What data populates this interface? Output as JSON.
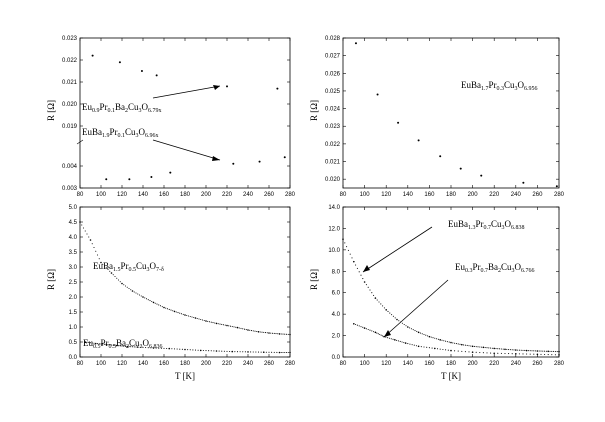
{
  "chart_data": [
    {
      "type": "scatter",
      "xlabel": "",
      "ylabel": "R [Ω]",
      "xlim": [
        80,
        280
      ],
      "ylim": [
        0.003,
        0.023
      ],
      "xticks": [
        "80",
        "100",
        "120",
        "140",
        "160",
        "180",
        "200",
        "220",
        "240",
        "260",
        "280"
      ],
      "yticks": [
        "0.003",
        "0.004",
        "0.019",
        "0.020",
        "0.021",
        "0.022",
        "0.023"
      ],
      "broken_axis": true,
      "series": [
        {
          "name": "Eu0.9Pr0.1Ba2Cu3O6.79x",
          "x": [
            92,
            118,
            139,
            153,
            220,
            268
          ],
          "y": [
            0.0222,
            0.0219,
            0.0215,
            0.0213,
            0.0208,
            0.0207
          ]
        },
        {
          "name": "EuBa1.9Pr0.1Cu3O6.96x",
          "x": [
            105,
            127,
            148,
            166,
            226,
            251,
            275
          ],
          "y": [
            0.0034,
            0.0034,
            0.0035,
            0.0037,
            0.0041,
            0.0042,
            0.0044
          ]
        }
      ],
      "annotations": [
        {
          "lines": [
            "Eu",
            "0.9",
            "Pr",
            "0.1",
            "Ba",
            "2",
            "Cu",
            "3",
            "O",
            "6.79x"
          ],
          "target": [
            220,
            0.0208
          ]
        },
        {
          "lines": [
            "EuBa",
            "1.9",
            "Pr",
            "0.1",
            "Cu",
            "3",
            "O",
            "6.96x"
          ],
          "target": [
            220,
            0.0041
          ]
        }
      ]
    },
    {
      "type": "scatter",
      "xlabel": "",
      "ylabel": "R [Ω]",
      "xlim": [
        80,
        280
      ],
      "ylim": [
        0.0195,
        0.028
      ],
      "xticks": [
        "80",
        "100",
        "120",
        "140",
        "160",
        "180",
        "200",
        "220",
        "240",
        "260",
        "280"
      ],
      "yticks": [
        "0.020",
        "0.021",
        "0.022",
        "0.023",
        "0.024",
        "0.025",
        "0.026",
        "0.027",
        "0.028"
      ],
      "series": [
        {
          "name": "EuBa1.7Pr0.3Cu3O6.956",
          "x": [
            92,
            112,
            131,
            150,
            170,
            189,
            208,
            247,
            278
          ],
          "y": [
            0.0277,
            0.0248,
            0.0232,
            0.0222,
            0.0213,
            0.0206,
            0.0202,
            0.0198,
            0.0196
          ]
        }
      ],
      "annotations": [
        {
          "lines": [
            "EuBa",
            "1.7",
            "Pr",
            "0.3",
            "Cu",
            "3",
            "O",
            "6.956"
          ]
        }
      ]
    },
    {
      "type": "scatter",
      "xlabel": "T [K]",
      "ylabel": "R [Ω]",
      "xlim": [
        80,
        280
      ],
      "ylim": [
        0,
        5
      ],
      "xticks": [
        "80",
        "100",
        "120",
        "140",
        "160",
        "180",
        "200",
        "220",
        "240",
        "260",
        "280"
      ],
      "yticks": [
        "0.0",
        "0.5",
        "1.0",
        "1.5",
        "2.0",
        "2.5",
        "3.0",
        "3.5",
        "4.0",
        "4.5",
        "5.0"
      ],
      "series": [
        {
          "name": "EuBa1.5Pr0.5Cu3O7-δ",
          "x": [
            80,
            90,
            100,
            110,
            120,
            130,
            140,
            150,
            160,
            170,
            180,
            190,
            200,
            210,
            220,
            230,
            240,
            250,
            260,
            270,
            280
          ],
          "y": [
            4.5,
            3.9,
            3.15,
            2.8,
            2.45,
            2.2,
            2.0,
            1.82,
            1.65,
            1.52,
            1.4,
            1.3,
            1.2,
            1.12,
            1.05,
            0.98,
            0.9,
            0.84,
            0.8,
            0.77,
            0.75
          ]
        },
        {
          "name": "Eu0.5Pr0.5Ba2Cu3O6.836",
          "x": [
            85,
            95,
            105,
            115,
            125,
            135,
            150,
            165,
            180,
            195,
            210,
            225,
            240,
            255,
            270,
            280
          ],
          "y": [
            0.5,
            0.45,
            0.42,
            0.38,
            0.35,
            0.33,
            0.3,
            0.28,
            0.25,
            0.22,
            0.2,
            0.18,
            0.17,
            0.16,
            0.15,
            0.15
          ]
        }
      ],
      "annotations": [
        {
          "lines": [
            "EuBa",
            "1.5",
            "Pr",
            "0.5",
            "Cu",
            "3",
            "O",
            "7-δ"
          ]
        },
        {
          "lines": [
            "Eu",
            "0.5",
            "Pr",
            "0.5",
            "Ba",
            "2",
            "Cu",
            "3",
            "O",
            "6.836"
          ]
        }
      ]
    },
    {
      "type": "scatter",
      "xlabel": "T [K]",
      "ylabel": "R [Ω]",
      "xlim": [
        80,
        280
      ],
      "ylim": [
        0,
        14
      ],
      "xticks": [
        "80",
        "100",
        "120",
        "140",
        "160",
        "180",
        "200",
        "220",
        "240",
        "260",
        "280"
      ],
      "yticks": [
        "0.0",
        "2.0",
        "4.0",
        "6.0",
        "8.0",
        "10.0",
        "12.0",
        "14.0"
      ],
      "series": [
        {
          "name": "EuBa1.3Pr0.7Cu3O6.838",
          "x": [
            80,
            90,
            100,
            110,
            120,
            130,
            140,
            150,
            160,
            170,
            180,
            190,
            200,
            210,
            220,
            230,
            240,
            250,
            260,
            270,
            280
          ],
          "y": [
            11.0,
            8.9,
            7.0,
            5.5,
            4.4,
            3.5,
            2.8,
            2.3,
            1.9,
            1.6,
            1.35,
            1.15,
            1.0,
            0.9,
            0.8,
            0.72,
            0.65,
            0.6,
            0.56,
            0.53,
            0.5
          ]
        },
        {
          "name": "Eu0.3Pr0.7Ba2Cu3O6.766",
          "x": [
            90,
            100,
            110,
            118,
            128,
            138,
            150,
            165,
            180,
            200,
            220,
            240,
            260,
            280
          ],
          "y": [
            3.1,
            2.7,
            2.3,
            1.9,
            1.6,
            1.3,
            1.0,
            0.8,
            0.6,
            0.45,
            0.35,
            0.3,
            0.25,
            0.2
          ]
        }
      ],
      "annotations": [
        {
          "lines": [
            "EuBa",
            "1.3",
            "Pr",
            "0.7",
            "Cu",
            "3",
            "O",
            "6.838"
          ],
          "target": [
            98,
            6.5
          ]
        },
        {
          "lines": [
            "Eu",
            "0.3",
            "Pr",
            "0.7",
            "Ba",
            "2",
            "Cu",
            "3",
            "O",
            "6.766"
          ],
          "target": [
            120,
            1.8
          ]
        }
      ]
    }
  ]
}
